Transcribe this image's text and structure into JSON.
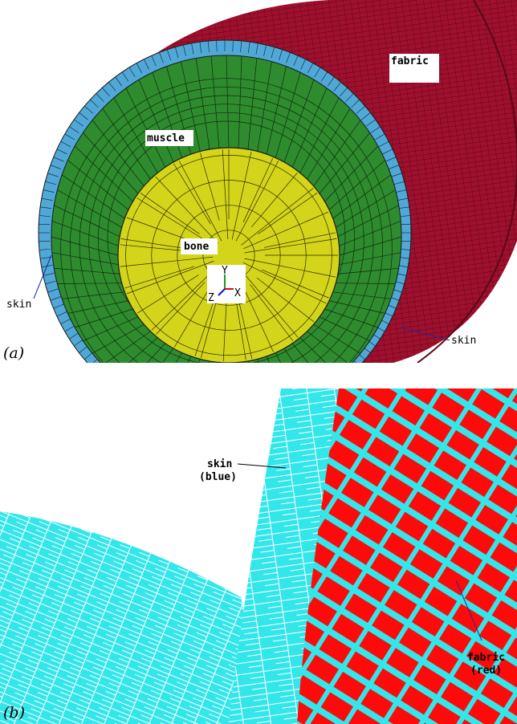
{
  "panel_a": {
    "panel_label": "(a)",
    "labels": {
      "fabric": "fabric",
      "muscle": "muscle",
      "bone": "bone",
      "skin_left": "skin",
      "skin_right": "skin"
    },
    "axes": {
      "y": "Y",
      "x": "X",
      "z": "Z"
    }
  },
  "panel_b": {
    "panel_label": "(b)",
    "labels": {
      "skin": "skin",
      "skin_color": "(blue)",
      "fabric": "fabric",
      "fabric_color": "(red)"
    }
  },
  "colors": {
    "fabric": "#a0102e",
    "skin": "#4fa8d8",
    "muscle": "#2e8b2e",
    "bone": "#d4d41a",
    "mesh_line": "#1a1a1a",
    "skin_b": "#33e6ea",
    "fabric_b": "#ff0a0a"
  }
}
